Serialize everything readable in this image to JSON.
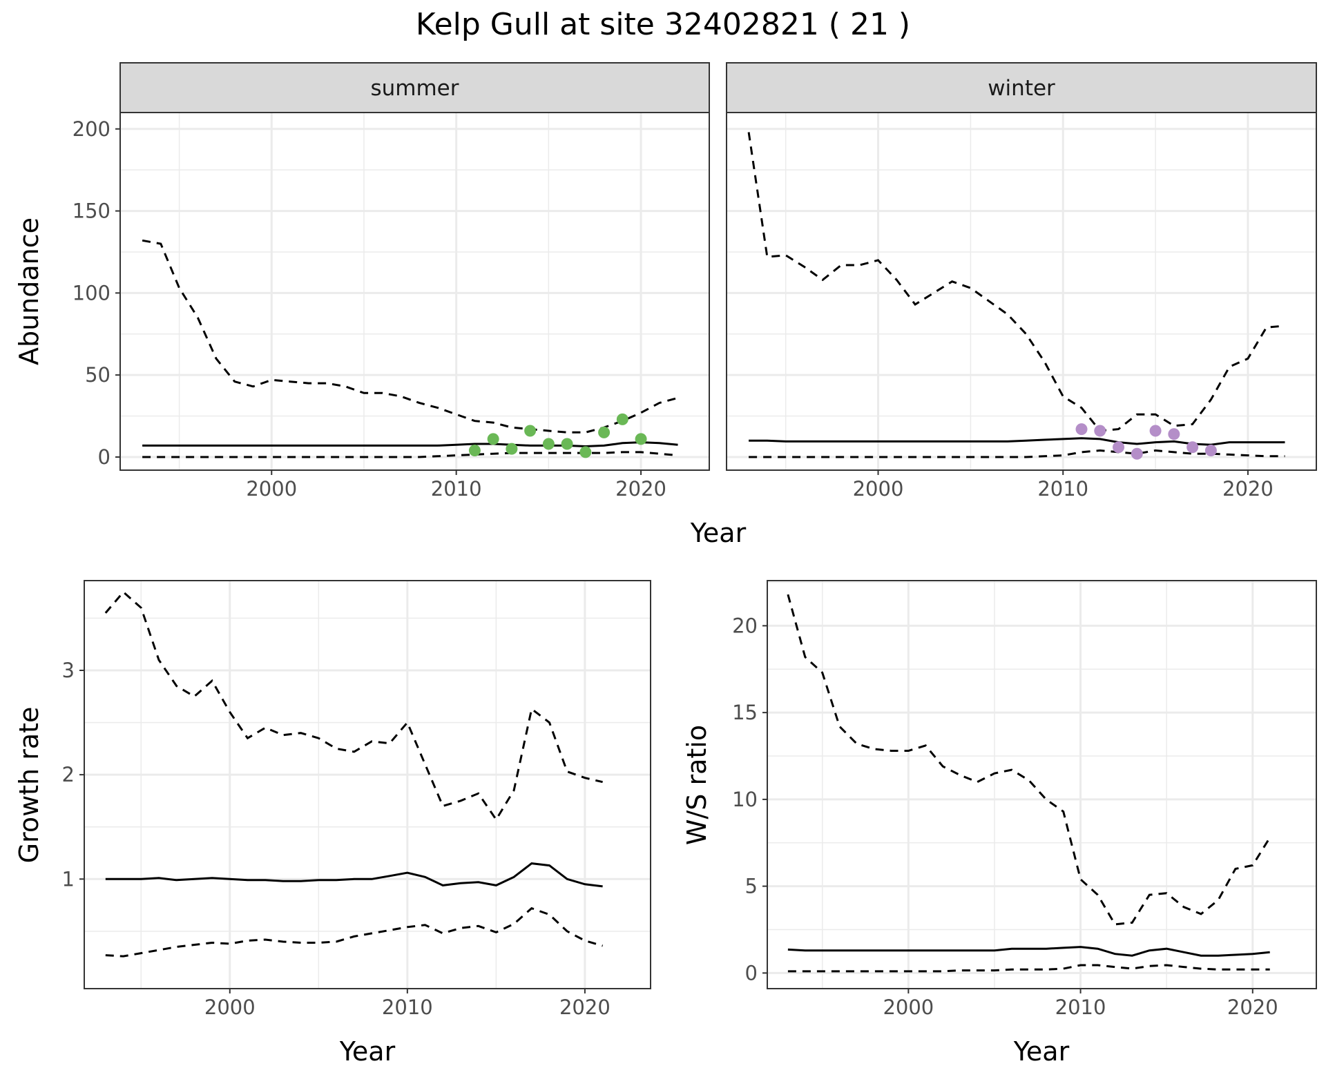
{
  "chart_data": {
    "title": "Kelp Gull at site 32402821 ( 21 )",
    "colors": {
      "summer_points": "#6ab856",
      "winter_points": "#b48ec8",
      "line": "#000000",
      "strip_bg": "#d9d9d9",
      "grid": "#ebebeb"
    },
    "abundance": {
      "type": "line",
      "ylabel": "Abundance",
      "xlabel": "Year",
      "xlim": [
        1991.8,
        2023.7
      ],
      "ylim": [
        -8,
        210
      ],
      "xticks": [
        2000,
        2010,
        2020
      ],
      "yticks": [
        0,
        50,
        100,
        150,
        200
      ],
      "x": [
        1993,
        1994,
        1995,
        1996,
        1997,
        1998,
        1999,
        2000,
        2001,
        2002,
        2003,
        2004,
        2005,
        2006,
        2007,
        2008,
        2009,
        2010,
        2011,
        2012,
        2013,
        2014,
        2015,
        2016,
        2017,
        2018,
        2019,
        2020,
        2021,
        2022
      ],
      "panels": [
        {
          "strip": "summer",
          "mean": [
            7,
            7,
            7,
            7,
            7,
            7,
            7,
            7,
            7,
            7,
            7,
            7,
            7,
            7,
            7,
            7,
            7,
            7.5,
            8,
            8,
            7.5,
            7,
            7,
            7,
            6.5,
            7,
            8.5,
            9,
            8.5,
            7.5
          ],
          "upper": [
            132,
            130,
            103,
            85,
            60,
            46,
            43,
            47,
            46,
            45,
            45,
            43,
            39,
            39,
            37,
            33,
            30,
            26,
            22,
            21,
            18,
            17,
            16,
            15,
            15,
            18,
            22,
            27,
            33,
            36
          ],
          "lower": [
            0,
            0,
            0,
            0,
            0,
            0,
            0,
            0,
            0,
            0,
            0,
            0,
            0,
            0,
            0,
            0,
            0.5,
            1,
            1.5,
            2,
            2.5,
            2.5,
            2.5,
            2.5,
            2.5,
            2.5,
            3,
            3,
            2,
            1
          ],
          "obs_x": [
            2011,
            2012,
            2013,
            2014,
            2015,
            2016,
            2017,
            2018,
            2019,
            2020
          ],
          "obs_y": [
            4,
            11,
            5,
            16,
            8,
            8,
            3,
            15,
            23,
            11
          ]
        },
        {
          "strip": "winter",
          "mean": [
            10,
            10,
            9.5,
            9.5,
            9.5,
            9.5,
            9.5,
            9.5,
            9.5,
            9.5,
            9.5,
            9.5,
            9.5,
            9.5,
            9.5,
            10,
            10.5,
            11,
            11.5,
            11,
            9,
            8,
            9,
            9.5,
            8,
            7.5,
            9,
            9,
            9,
            9
          ],
          "upper": [
            198,
            122,
            123,
            116,
            108,
            117,
            117,
            120,
            108,
            93,
            100,
            107,
            103,
            95,
            87,
            75,
            58,
            37,
            30,
            16,
            17,
            26,
            26,
            19,
            20,
            35,
            55,
            60,
            79,
            80
          ],
          "lower": [
            0,
            0,
            0,
            0,
            0,
            0,
            0,
            0,
            0,
            0,
            0,
            0,
            0,
            0,
            0,
            0,
            0.5,
            1,
            3,
            4,
            3,
            2,
            4,
            3,
            2,
            2,
            1.5,
            1,
            0.5,
            0.5
          ],
          "obs_x": [
            2011,
            2012,
            2013,
            2014,
            2015,
            2016,
            2017,
            2018
          ],
          "obs_y": [
            17,
            16,
            6,
            2,
            16,
            14,
            6,
            4
          ]
        }
      ]
    },
    "growth_rate": {
      "type": "line",
      "ylabel": "Growth rate",
      "xlabel": "Year",
      "xlim": [
        1991.8,
        2023.7
      ],
      "ylim": [
        -0.05,
        3.86
      ],
      "xticks": [
        2000,
        2010,
        2020
      ],
      "yticks": [
        1,
        2,
        3
      ],
      "x": [
        1993,
        1994,
        1995,
        1996,
        1997,
        1998,
        1999,
        2000,
        2001,
        2002,
        2003,
        2004,
        2005,
        2006,
        2007,
        2008,
        2009,
        2010,
        2011,
        2012,
        2013,
        2014,
        2015,
        2016,
        2017,
        2018,
        2019,
        2020,
        2021
      ],
      "mean": [
        1.0,
        1.0,
        1.0,
        1.01,
        0.99,
        1.0,
        1.01,
        1.0,
        0.99,
        0.99,
        0.98,
        0.98,
        0.99,
        0.99,
        1.0,
        1.0,
        1.03,
        1.06,
        1.02,
        0.94,
        0.96,
        0.97,
        0.94,
        1.02,
        1.15,
        1.13,
        1.0,
        0.95,
        0.93
      ],
      "upper": [
        3.55,
        3.75,
        3.6,
        3.1,
        2.85,
        2.75,
        2.9,
        2.6,
        2.35,
        2.45,
        2.38,
        2.4,
        2.35,
        2.25,
        2.22,
        2.32,
        2.3,
        2.5,
        2.1,
        1.7,
        1.75,
        1.82,
        1.57,
        1.85,
        2.63,
        2.5,
        2.03,
        1.97,
        1.93
      ],
      "lower": [
        0.27,
        0.26,
        0.29,
        0.32,
        0.35,
        0.37,
        0.39,
        0.38,
        0.41,
        0.42,
        0.4,
        0.39,
        0.39,
        0.4,
        0.45,
        0.48,
        0.51,
        0.54,
        0.56,
        0.48,
        0.53,
        0.55,
        0.49,
        0.57,
        0.72,
        0.66,
        0.5,
        0.41,
        0.36
      ]
    },
    "ws_ratio": {
      "type": "line",
      "ylabel": "W/S ratio",
      "xlabel": "Year",
      "xlim": [
        1991.8,
        2023.7
      ],
      "ylim": [
        -0.9,
        22.6
      ],
      "xticks": [
        2000,
        2010,
        2020
      ],
      "yticks": [
        0,
        5,
        10,
        15,
        20
      ],
      "x": [
        1993,
        1994,
        1995,
        1996,
        1997,
        1998,
        1999,
        2000,
        2001,
        2002,
        2003,
        2004,
        2005,
        2006,
        2007,
        2008,
        2009,
        2010,
        2011,
        2012,
        2013,
        2014,
        2015,
        2016,
        2017,
        2018,
        2019,
        2020,
        2021
      ],
      "mean": [
        1.35,
        1.3,
        1.3,
        1.3,
        1.3,
        1.3,
        1.3,
        1.3,
        1.3,
        1.3,
        1.3,
        1.3,
        1.3,
        1.4,
        1.4,
        1.4,
        1.45,
        1.5,
        1.4,
        1.1,
        1.0,
        1.3,
        1.4,
        1.2,
        1.0,
        1.0,
        1.05,
        1.1,
        1.2
      ],
      "upper": [
        21.8,
        18.2,
        17.3,
        14.2,
        13.2,
        12.9,
        12.8,
        12.8,
        13.1,
        11.9,
        11.4,
        11.0,
        11.5,
        11.7,
        11.1,
        10.0,
        9.3,
        5.4,
        4.5,
        2.8,
        2.9,
        4.5,
        4.6,
        3.8,
        3.4,
        4.2,
        6.0,
        6.2,
        7.8
      ],
      "lower": [
        0.1,
        0.1,
        0.1,
        0.1,
        0.1,
        0.1,
        0.1,
        0.1,
        0.1,
        0.1,
        0.15,
        0.15,
        0.15,
        0.2,
        0.2,
        0.2,
        0.25,
        0.45,
        0.45,
        0.35,
        0.25,
        0.4,
        0.45,
        0.35,
        0.25,
        0.2,
        0.2,
        0.2,
        0.2
      ]
    }
  }
}
